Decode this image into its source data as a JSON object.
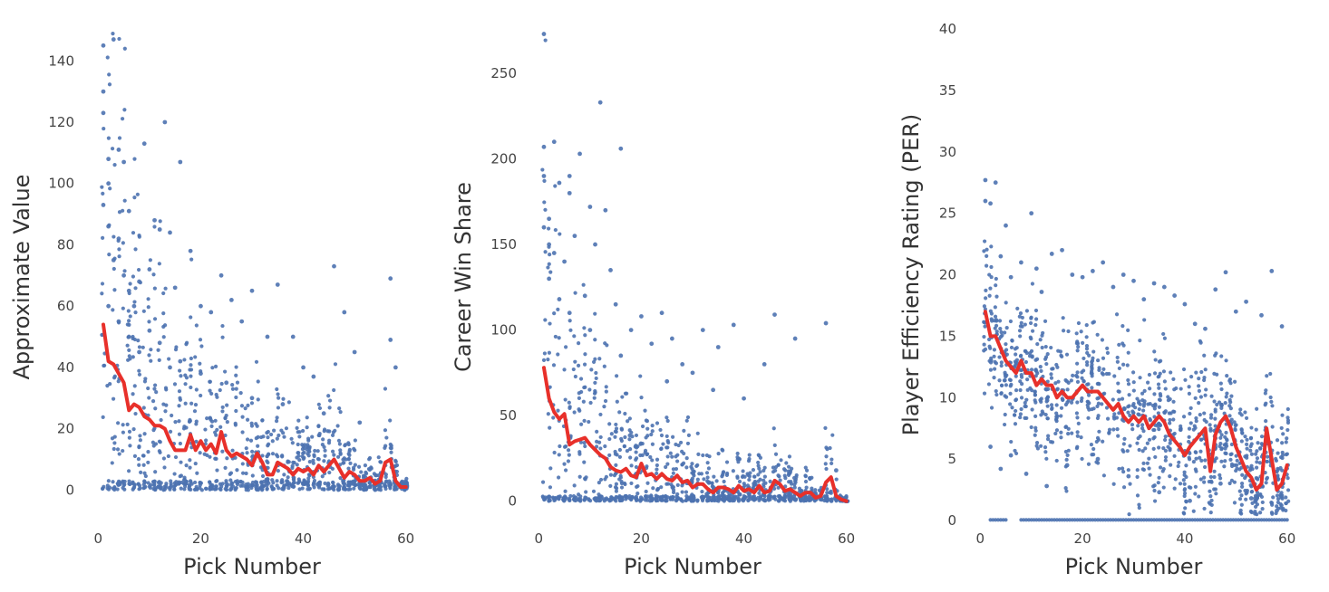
{
  "chart_data": [
    {
      "type": "scatter",
      "xlabel": "Pick Number",
      "ylabel": "Approximate Value",
      "xlim": [
        -2,
        62
      ],
      "ylim": [
        -12,
        151
      ],
      "xticks": [
        0,
        20,
        40,
        60
      ],
      "yticks": [
        0,
        20,
        40,
        60,
        80,
        100,
        120,
        140
      ],
      "grid": false,
      "colors": {
        "points": "#4c72b0",
        "line": "#e8302a"
      },
      "series": [
        {
          "type": "scatter",
          "x": [
            1,
            1,
            1,
            2,
            2,
            3,
            4,
            5,
            6,
            9,
            13,
            16,
            1,
            2,
            3,
            4,
            5,
            6,
            7,
            8,
            10,
            11,
            12,
            14,
            15,
            18,
            20,
            22,
            24,
            26,
            28,
            30,
            33,
            35,
            38,
            40,
            42,
            46,
            48,
            50,
            57,
            57,
            58,
            2,
            4,
            6,
            8,
            10,
            12,
            14,
            16,
            20,
            25,
            30,
            36,
            44,
            51
          ],
          "y": [
            145,
            130,
            123,
            108,
            100,
            147,
            111,
            107,
            91,
            113,
            120,
            107,
            93,
            86,
            75,
            82,
            70,
            65,
            60,
            68,
            72,
            88,
            85,
            84,
            66,
            78,
            60,
            58,
            70,
            62,
            55,
            65,
            50,
            67,
            50,
            40,
            37,
            73,
            58,
            45,
            69,
            49,
            40,
            60,
            55,
            50,
            45,
            52,
            48,
            40,
            42,
            38,
            35,
            30,
            28,
            25,
            22
          ]
        },
        {
          "type": "line",
          "x": [
            1,
            2,
            3,
            4,
            5,
            6,
            7,
            8,
            9,
            10,
            11,
            12,
            13,
            14,
            15,
            16,
            17,
            18,
            19,
            20,
            21,
            22,
            23,
            24,
            25,
            26,
            27,
            28,
            29,
            30,
            31,
            32,
            33,
            34,
            35,
            36,
            37,
            38,
            39,
            40,
            41,
            42,
            43,
            44,
            45,
            46,
            47,
            48,
            49,
            50,
            51,
            52,
            53,
            54,
            55,
            56,
            57,
            58,
            59,
            60
          ],
          "y": [
            54,
            42,
            41,
            38,
            35,
            26,
            28,
            27,
            24,
            23,
            21,
            21,
            20,
            16,
            13,
            13,
            13,
            18,
            13,
            16,
            13,
            15,
            12,
            19,
            13,
            11,
            12,
            11,
            10,
            8,
            12,
            9,
            5,
            5,
            9,
            8,
            7,
            5,
            7,
            6,
            7,
            5,
            8,
            6,
            8,
            10,
            7,
            4,
            6,
            5,
            3,
            3,
            4,
            2,
            3,
            9,
            10,
            3,
            1,
            1
          ]
        }
      ]
    },
    {
      "type": "scatter",
      "xlabel": "Pick Number",
      "ylabel": "Career Win Share",
      "xlim": [
        -2,
        62
      ],
      "ylim": [
        -15,
        277
      ],
      "xticks": [
        0,
        20,
        40,
        60
      ],
      "yticks": [
        0,
        50,
        100,
        150,
        200,
        250
      ],
      "grid": false,
      "colors": {
        "points": "#4c72b0",
        "line": "#e8302a"
      },
      "series": [
        {
          "type": "scatter",
          "x": [
            1,
            1,
            1,
            2,
            3,
            4,
            6,
            8,
            10,
            11,
            12,
            13,
            16,
            1,
            2,
            3,
            5,
            6,
            7,
            9,
            14,
            15,
            18,
            20,
            22,
            24,
            26,
            28,
            30,
            32,
            35,
            38,
            40,
            44,
            46,
            50,
            56,
            58,
            2,
            4,
            6,
            10,
            16,
            25,
            34
          ],
          "y": [
            273,
            207,
            190,
            165,
            210,
            186,
            190,
            203,
            172,
            150,
            233,
            170,
            206,
            160,
            150,
            145,
            140,
            180,
            155,
            120,
            135,
            115,
            100,
            108,
            92,
            110,
            95,
            80,
            75,
            100,
            90,
            103,
            60,
            80,
            109,
            95,
            104,
            18,
            130,
            118,
            110,
            100,
            85,
            70,
            65
          ]
        },
        {
          "type": "line",
          "x": [
            1,
            2,
            3,
            4,
            5,
            6,
            7,
            8,
            9,
            10,
            11,
            12,
            13,
            14,
            15,
            16,
            17,
            18,
            19,
            20,
            21,
            22,
            23,
            24,
            25,
            26,
            27,
            28,
            29,
            30,
            31,
            32,
            33,
            34,
            35,
            36,
            37,
            38,
            39,
            40,
            41,
            42,
            43,
            44,
            45,
            46,
            47,
            48,
            49,
            50,
            51,
            52,
            53,
            54,
            55,
            56,
            57,
            58,
            59,
            60
          ],
          "y": [
            78,
            60,
            52,
            48,
            51,
            33,
            35,
            36,
            37,
            33,
            30,
            27,
            25,
            20,
            18,
            17,
            19,
            15,
            14,
            22,
            15,
            16,
            13,
            16,
            13,
            12,
            15,
            11,
            12,
            8,
            10,
            10,
            7,
            5,
            8,
            8,
            7,
            5,
            9,
            6,
            7,
            5,
            9,
            5,
            6,
            12,
            10,
            6,
            7,
            5,
            3,
            5,
            5,
            2,
            3,
            11,
            14,
            3,
            1,
            0
          ]
        }
      ]
    },
    {
      "type": "scatter",
      "xlabel": "Pick Number",
      "ylabel": "Player Efficiency Rating (PER)",
      "xlim": [
        -2,
        62
      ],
      "ylim": [
        0,
        40
      ],
      "xticks": [
        0,
        20,
        40,
        60
      ],
      "yticks": [
        0,
        5,
        10,
        15,
        20,
        25,
        30,
        35,
        40
      ],
      "grid": false,
      "colors": {
        "points": "#4c72b0",
        "line": "#e8302a"
      },
      "series": [
        {
          "type": "scatter",
          "x": [
            1,
            1,
            2,
            3,
            4,
            5,
            6,
            8,
            10,
            11,
            12,
            14,
            16,
            18,
            20,
            22,
            24,
            26,
            28,
            30,
            32,
            34,
            36,
            38,
            40,
            42,
            44,
            46,
            48,
            50,
            52,
            55,
            57,
            59,
            2,
            4,
            6,
            9,
            13,
            17,
            23,
            29,
            35,
            41,
            47,
            53,
            58
          ],
          "y": [
            27.7,
            26.0,
            25.8,
            27.5,
            21.5,
            24.0,
            19.8,
            21.0,
            25.0,
            20.5,
            18.6,
            21.7,
            22.0,
            20.0,
            19.8,
            20.3,
            21.0,
            19.0,
            20.0,
            19.5,
            18.0,
            19.3,
            19.0,
            18.3,
            17.6,
            16.0,
            15.6,
            18.8,
            20.2,
            17.0,
            17.8,
            16.7,
            20.3,
            15.8,
            6.0,
            4.2,
            5.3,
            3.8,
            2.8,
            4.5,
            5.0,
            3.6,
            2.3,
            1.6,
            3.0,
            1.8,
            0.8
          ]
        },
        {
          "type": "line",
          "x": [
            1,
            2,
            3,
            4,
            5,
            6,
            7,
            8,
            9,
            10,
            11,
            12,
            13,
            14,
            15,
            16,
            17,
            18,
            19,
            20,
            21,
            22,
            23,
            24,
            25,
            26,
            27,
            28,
            29,
            30,
            31,
            32,
            33,
            34,
            35,
            36,
            37,
            38,
            39,
            40,
            41,
            42,
            43,
            44,
            45,
            46,
            47,
            48,
            49,
            50,
            51,
            52,
            53,
            54,
            55,
            56,
            57,
            58,
            59,
            60
          ],
          "y": [
            17.0,
            15.0,
            15.0,
            14.0,
            13.0,
            12.5,
            12.0,
            13.0,
            12.0,
            12.0,
            11.0,
            11.5,
            11.0,
            11.0,
            10.0,
            10.5,
            10.0,
            10.0,
            10.5,
            11.0,
            10.5,
            10.5,
            10.5,
            10.0,
            9.5,
            9.0,
            9.5,
            8.5,
            8.0,
            8.5,
            8.0,
            8.5,
            7.5,
            8.0,
            8.5,
            8.0,
            7.0,
            6.5,
            6.0,
            5.3,
            6.0,
            6.5,
            7.0,
            7.5,
            4.0,
            7.0,
            8.0,
            8.5,
            7.5,
            6.0,
            5.0,
            4.0,
            3.5,
            2.5,
            3.0,
            7.5,
            5.0,
            2.5,
            3.0,
            4.5
          ]
        }
      ]
    }
  ]
}
